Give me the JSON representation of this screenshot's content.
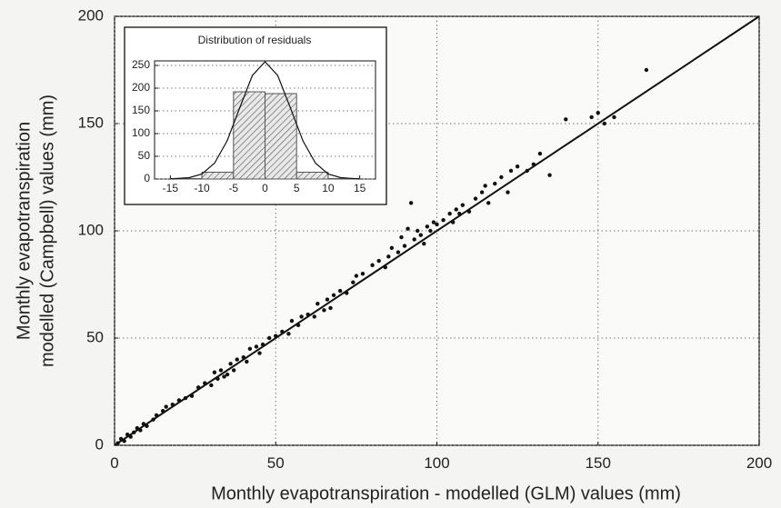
{
  "chart_data": [
    {
      "type": "scatter",
      "xlabel": "Monthly evapotranspiration - modelled (GLM) values (mm)",
      "ylabel": [
        "Monthly evapotranspiration",
        "modelled (Campbell) values (mm)"
      ],
      "xlim": [
        0,
        200
      ],
      "ylim": [
        0,
        200
      ],
      "xticks": [
        0,
        50,
        100,
        150,
        200
      ],
      "yticks": [
        0,
        50,
        100,
        150,
        200
      ],
      "grid": true,
      "color": "#111111",
      "x": [
        1,
        2,
        3,
        4,
        5,
        6,
        7,
        8,
        9,
        10,
        12,
        13,
        15,
        16,
        18,
        20,
        22,
        24,
        26,
        28,
        30,
        31,
        32,
        33,
        34,
        35,
        36,
        37,
        38,
        40,
        41,
        42,
        44,
        45,
        46,
        48,
        50,
        52,
        54,
        55,
        57,
        58,
        60,
        62,
        63,
        65,
        66,
        67,
        68,
        70,
        72,
        74,
        75,
        77,
        80,
        82,
        84,
        85,
        86,
        88,
        89,
        90,
        91,
        92,
        93,
        94,
        95,
        96,
        97,
        98,
        99,
        100,
        102,
        104,
        105,
        106,
        107,
        108,
        110,
        112,
        114,
        115,
        116,
        118,
        120,
        122,
        123,
        125,
        128,
        130,
        132,
        135,
        140,
        148,
        150,
        152,
        155,
        165
      ],
      "values": [
        1,
        3,
        2,
        5,
        4,
        6,
        8,
        7,
        10,
        9,
        12,
        14,
        16,
        18,
        19,
        21,
        22,
        23,
        27,
        29,
        28,
        34,
        31,
        35,
        32,
        33,
        38,
        35,
        40,
        41,
        39,
        45,
        46,
        43,
        47,
        50,
        51,
        53,
        52,
        58,
        56,
        60,
        61,
        60,
        66,
        63,
        68,
        64,
        70,
        72,
        71,
        76,
        79,
        80,
        84,
        86,
        83,
        88,
        92,
        90,
        97,
        93,
        101,
        113,
        96,
        100,
        98,
        94,
        102,
        100,
        104,
        103,
        105,
        108,
        104,
        110,
        108,
        112,
        109,
        115,
        118,
        121,
        113,
        122,
        125,
        118,
        128,
        130,
        128,
        131,
        136,
        126,
        152,
        153,
        155,
        150,
        153,
        175
      ],
      "fit_line": {
        "x": [
          0,
          200
        ],
        "values": [
          0,
          200
        ]
      }
    },
    {
      "type": "histogram",
      "title": "Distribution of residuals",
      "bins": [
        -15,
        -10,
        -5,
        0,
        5,
        10,
        15
      ],
      "counts": [
        1,
        15,
        192,
        188,
        15,
        1
      ],
      "xlim": [
        -17.5,
        17.5
      ],
      "ylim": [
        0,
        260
      ],
      "xticks": [
        -15,
        -10,
        -5,
        0,
        5,
        10,
        15
      ],
      "yticks": [
        0,
        50,
        100,
        150,
        200,
        250
      ],
      "grid": true,
      "color": "#555555",
      "curve": {
        "x": [
          -15,
          -12,
          -10,
          -8,
          -6,
          -4,
          -2,
          0,
          2,
          4,
          6,
          8,
          10,
          12,
          15
        ],
        "values": [
          0.2,
          3,
          11,
          35,
          84,
          157,
          228,
          258,
          228,
          157,
          84,
          35,
          11,
          3,
          0.2
        ]
      }
    }
  ]
}
